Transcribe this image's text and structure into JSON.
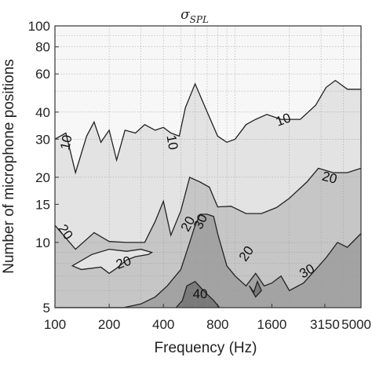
{
  "chart_data": {
    "type": "contour",
    "title": "σ",
    "title_subscript": "SPL",
    "xlabel": "Frequency (Hz)",
    "ylabel": "Number of microphone positions",
    "x_scale": "log",
    "y_scale": "log",
    "xlim": [
      100,
      5000
    ],
    "ylim": [
      5,
      100
    ],
    "xticks": [
      100,
      200,
      400,
      800,
      1600,
      3150,
      5000
    ],
    "xtick_labels": [
      "100",
      "200",
      "400",
      "800",
      "1600",
      "3150",
      "5000"
    ],
    "yticks": [
      5,
      10,
      15,
      20,
      30,
      40,
      60,
      80,
      100
    ],
    "ytick_labels": [
      "5",
      "10",
      "15",
      "20",
      "30",
      "40",
      "60",
      "80",
      "100"
    ],
    "grid": true,
    "levels": [
      {
        "level": 10,
        "fill": "#e3e3e3",
        "boundary": [
          [
            100,
            30
          ],
          [
            115,
            32
          ],
          [
            130,
            21
          ],
          [
            150,
            31
          ],
          [
            165,
            36
          ],
          [
            180,
            29
          ],
          [
            200,
            33
          ],
          [
            220,
            24
          ],
          [
            245,
            33
          ],
          [
            280,
            32
          ],
          [
            315,
            35
          ],
          [
            360,
            33
          ],
          [
            400,
            34
          ],
          [
            440,
            32
          ],
          [
            490,
            31
          ],
          [
            530,
            42
          ],
          [
            600,
            54
          ],
          [
            700,
            40
          ],
          [
            800,
            31
          ],
          [
            900,
            29
          ],
          [
            1000,
            30
          ],
          [
            1150,
            35
          ],
          [
            1300,
            37
          ],
          [
            1500,
            39
          ],
          [
            1800,
            37
          ],
          [
            2300,
            37
          ],
          [
            2800,
            43
          ],
          [
            3200,
            52
          ],
          [
            3600,
            56
          ],
          [
            4200,
            51
          ],
          [
            5000,
            51
          ]
        ]
      },
      {
        "level": 20,
        "fill": "#c6c6c6",
        "boundary": [
          [
            100,
            12
          ],
          [
            130,
            9.3
          ],
          [
            165,
            11.1
          ],
          [
            200,
            10.1
          ],
          [
            250,
            10
          ],
          [
            315,
            10
          ],
          [
            360,
            12.5
          ],
          [
            400,
            15.5
          ],
          [
            440,
            10.8
          ],
          [
            500,
            14
          ],
          [
            560,
            20
          ],
          [
            640,
            19
          ],
          [
            720,
            18
          ],
          [
            800,
            14.6
          ],
          [
            950,
            14.7
          ],
          [
            1150,
            13.6
          ],
          [
            1400,
            13.6
          ],
          [
            1700,
            14.5
          ],
          [
            2000,
            16
          ],
          [
            2500,
            19
          ],
          [
            2900,
            22
          ],
          [
            3500,
            21
          ],
          [
            4200,
            21
          ],
          [
            5000,
            22
          ]
        ]
      },
      {
        "level": 30,
        "fill": "#a3a3a3",
        "boundary": [
          [
            100,
            5
          ],
          [
            240,
            5
          ],
          [
            300,
            5.2
          ],
          [
            360,
            5.6
          ],
          [
            420,
            6.3
          ],
          [
            500,
            7.5
          ],
          [
            560,
            10
          ],
          [
            600,
            12
          ],
          [
            640,
            13.5
          ],
          [
            700,
            13.5
          ],
          [
            760,
            13.2
          ],
          [
            800,
            11
          ],
          [
            900,
            7.8
          ],
          [
            1000,
            7
          ],
          [
            1150,
            6.3
          ],
          [
            1300,
            7.2
          ],
          [
            1450,
            6.3
          ],
          [
            1600,
            6.5
          ],
          [
            1800,
            7
          ],
          [
            2000,
            6
          ],
          [
            2400,
            6.5
          ],
          [
            2800,
            7.5
          ],
          [
            3200,
            8.5
          ],
          [
            3700,
            10
          ],
          [
            4200,
            9.5
          ],
          [
            5000,
            11
          ]
        ]
      },
      {
        "level": 40,
        "fill": "#7a7a7a",
        "boundary": [
          [
            470,
            5
          ],
          [
            510,
            5.4
          ],
          [
            540,
            6.3
          ],
          [
            600,
            6.6
          ],
          [
            680,
            5.9
          ],
          [
            760,
            5.4
          ],
          [
            820,
            5
          ]
        ]
      }
    ],
    "island_10": {
      "fill": "#e3e3e3",
      "points": [
        [
          125,
          7.8
        ],
        [
          160,
          8.8
        ],
        [
          200,
          9.3
        ],
        [
          250,
          9.1
        ],
        [
          300,
          9.3
        ],
        [
          345,
          9
        ],
        [
          330,
          8.8
        ],
        [
          280,
          8.6
        ],
        [
          250,
          8.3
        ],
        [
          220,
          7.6
        ],
        [
          200,
          7.2
        ],
        [
          180,
          7.7
        ],
        [
          160,
          7.6
        ],
        [
          140,
          7.5
        ],
        [
          125,
          7.8
        ]
      ]
    },
    "island_40": {
      "fill": "#7a7a7a",
      "points": [
        [
          1200,
          6.3
        ],
        [
          1270,
          5.9
        ],
        [
          1330,
          6.6
        ],
        [
          1400,
          6
        ],
        [
          1300,
          5.6
        ],
        [
          1200,
          6.3
        ]
      ]
    },
    "contour_labels": [
      {
        "text": "10",
        "x": 115,
        "y": 29,
        "angle": -78
      },
      {
        "text": "10",
        "x": 450,
        "y": 29,
        "angle": 80
      },
      {
        "text": "10",
        "x": 1850,
        "y": 37,
        "angle": -20
      },
      {
        "text": "20",
        "x": 115,
        "y": 11.2,
        "angle": 55
      },
      {
        "text": "20",
        "x": 240,
        "y": 8.1,
        "angle": -20
      },
      {
        "text": "20",
        "x": 545,
        "y": 12.2,
        "angle": -62
      },
      {
        "text": "30",
        "x": 640,
        "y": 12.5,
        "angle": -65
      },
      {
        "text": "20",
        "x": 1150,
        "y": 8.9,
        "angle": -55
      },
      {
        "text": "30",
        "x": 2500,
        "y": 7.4,
        "angle": -30
      },
      {
        "text": "20",
        "x": 3350,
        "y": 20,
        "angle": 15
      },
      {
        "text": "40",
        "x": 640,
        "y": 5.8,
        "angle": 0
      }
    ]
  }
}
